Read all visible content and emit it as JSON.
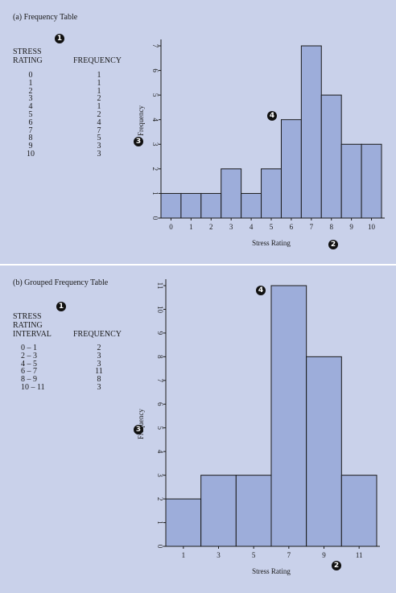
{
  "top": {
    "title": "(a) Frequency Table",
    "header_rating": [
      "STRESS",
      "RATING"
    ],
    "header_freq": "FREQUENCY",
    "ratings": [
      "0",
      "1",
      "2",
      "3",
      "4",
      "5",
      "6",
      "7",
      "8",
      "9",
      "10"
    ],
    "freqs": [
      "1",
      "1",
      "1",
      "2",
      "1",
      "2",
      "4",
      "7",
      "5",
      "3",
      "3"
    ]
  },
  "bottom": {
    "title": "(b) Grouped Frequency Table",
    "header_rating": [
      "STRESS",
      "RATING",
      "INTERVAL"
    ],
    "header_freq": "FREQUENCY",
    "intervals": [
      "0 – 1",
      "2 – 3",
      "4 – 5",
      "6 – 7",
      "8 – 9",
      "10 – 11"
    ],
    "freqs": [
      "2",
      "3",
      "3",
      "11",
      "8",
      "3"
    ]
  },
  "markers": {
    "m1": "1",
    "m2": "2",
    "m3": "3",
    "m4": "4"
  },
  "colors": {
    "background": "#c9d1ea",
    "bar_fill": "#9dadda",
    "bar_stroke": "#1a1a1a",
    "divider": "#ffffff"
  },
  "chart_data": [
    {
      "type": "bar",
      "title": "",
      "xlabel": "Stress Rating",
      "ylabel": "Frequency",
      "categories": [
        "0",
        "1",
        "2",
        "3",
        "4",
        "5",
        "6",
        "7",
        "8",
        "9",
        "10"
      ],
      "values": [
        1,
        1,
        1,
        2,
        1,
        2,
        4,
        7,
        5,
        3,
        3
      ],
      "xticks": [
        "0",
        "1",
        "2",
        "3",
        "4",
        "5",
        "6",
        "7",
        "8",
        "9",
        "10"
      ],
      "yticks": [
        "0",
        "1",
        "2",
        "3",
        "4",
        "5",
        "6",
        "7"
      ],
      "ylim": [
        0,
        7
      ],
      "grid": false
    },
    {
      "type": "bar",
      "title": "",
      "xlabel": "Stress Rating",
      "ylabel": "Frequency",
      "categories": [
        "0 – 1",
        "2 – 3",
        "4 – 5",
        "6 – 7",
        "8 – 9",
        "10 – 11"
      ],
      "values": [
        2,
        3,
        3,
        11,
        8,
        3
      ],
      "xticks": [
        "1",
        "3",
        "5",
        "7",
        "9",
        "11"
      ],
      "yticks": [
        "0",
        "1",
        "2",
        "3",
        "4",
        "5",
        "6",
        "7",
        "8",
        "9",
        "10",
        "11"
      ],
      "ylim": [
        0,
        11
      ],
      "grid": false
    }
  ]
}
